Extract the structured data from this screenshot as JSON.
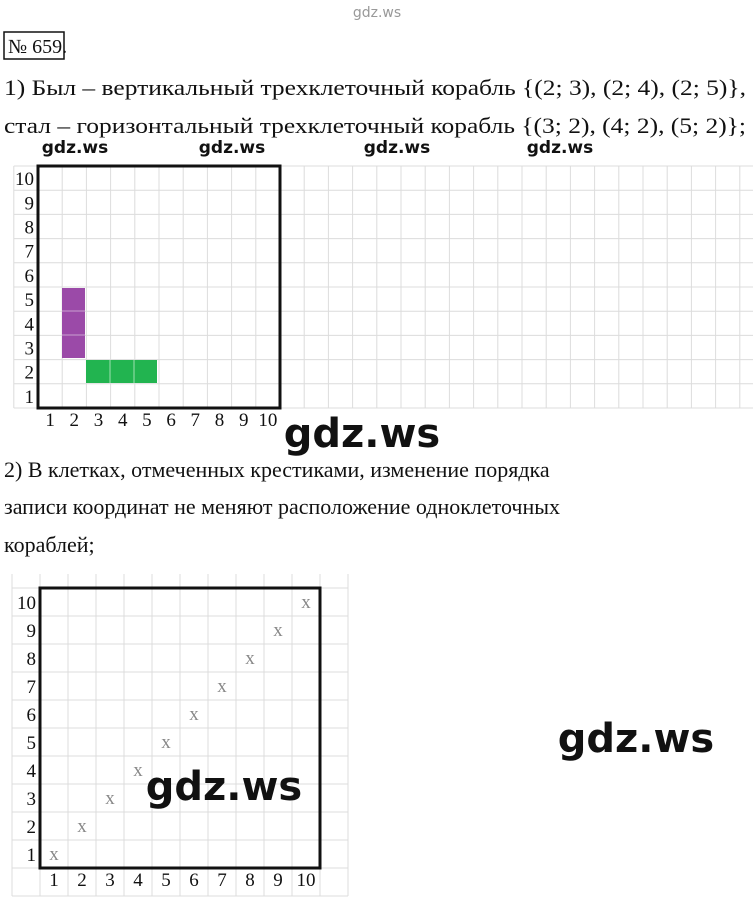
{
  "watermarks": [
    "gdz.ws",
    "gdz.ws",
    "gdz.ws",
    "gdz.ws",
    "gdz.ws",
    "gdz.ws",
    "gdz.ws",
    "gdz.ws"
  ],
  "header": {
    "number": "№ 659."
  },
  "part1": {
    "lines": [
      "1) Был – вертикальный трехклеточный корабль {(2; 3), (2; 4), (2; 5)},",
      "стал – горизонтальный трехклеточный корабль {(3; 2), (4; 2), (5; 2)};"
    ]
  },
  "grid1": {
    "row_labels": [
      "1",
      "2",
      "3",
      "4",
      "5",
      "6",
      "7",
      "8",
      "9",
      "10"
    ],
    "col_labels": [
      "1",
      "2",
      "3",
      "4",
      "5",
      "6",
      "7",
      "8",
      "9",
      "10"
    ]
  },
  "part2": {
    "lines": [
      "2) В клетках, отмеченных крестиками, изменение порядка",
      "записи координат не меняют расположение одноклеточных",
      "кораблей;"
    ]
  },
  "grid2": {
    "row_labels": [
      "1",
      "2",
      "3",
      "4",
      "5",
      "6",
      "7",
      "8",
      "9",
      "10"
    ],
    "col_labels": [
      "1",
      "2",
      "3",
      "4",
      "5",
      "6",
      "7",
      "8",
      "9",
      "10"
    ],
    "marks": [
      "x",
      "x",
      "x",
      "x",
      "x",
      "x",
      "x",
      "x",
      "x",
      "x"
    ]
  }
}
